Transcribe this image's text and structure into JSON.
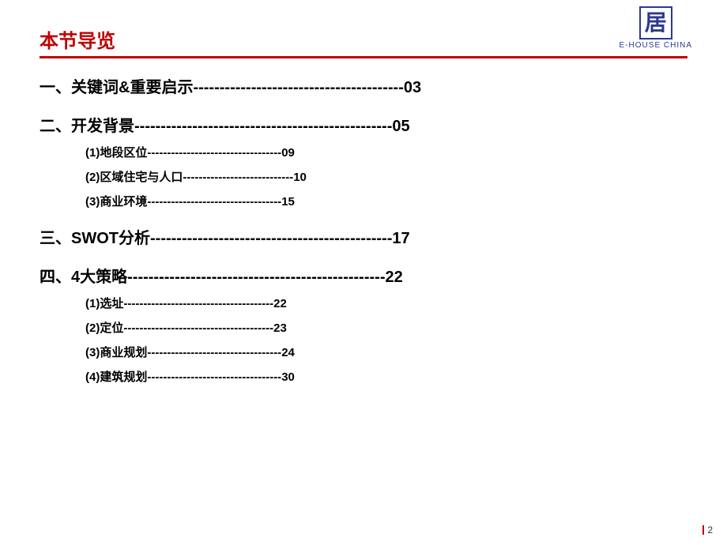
{
  "colors": {
    "title_color": "#c00000",
    "underline_color": "#c00000",
    "logo_color": "#2a3a8f",
    "text_color": "#000000"
  },
  "title": {
    "text": "本节导览",
    "fontsize": 24
  },
  "logo": {
    "glyph": "居",
    "text": "E-HOUSE  CHINA"
  },
  "toc": [
    {
      "level": "main",
      "label": "一、关键词&重要启示",
      "page": "03",
      "dash_count": 40
    },
    {
      "level": "main",
      "label": "二、开发背景",
      "page": "05",
      "dash_count": 49
    },
    {
      "level": "sub",
      "label": "(1)地段区位",
      "page": "09",
      "dash_count": 34
    },
    {
      "level": "sub",
      "label": "(2)区域住宅与人口",
      "page": "10",
      "dash_count": 28
    },
    {
      "level": "sub",
      "label": "(3)商业环境",
      "page": "15",
      "dash_count": 34
    },
    {
      "level": "main",
      "label": "三、SWOT分析",
      "page": "17",
      "dash_count": 46
    },
    {
      "level": "main",
      "label": "四、4大策略",
      "page": "22",
      "dash_count": 49
    },
    {
      "level": "sub",
      "label": "(1)选址",
      "page": "22",
      "dash_count": 38
    },
    {
      "level": "sub",
      "label": "(2)定位",
      "page": "23",
      "dash_count": 38
    },
    {
      "level": "sub",
      "label": "(3)商业规划",
      "page": "24",
      "dash_count": 34
    },
    {
      "level": "sub",
      "label": "(4)建筑规划",
      "page": "30",
      "dash_count": 34
    }
  ],
  "page_number": "2"
}
